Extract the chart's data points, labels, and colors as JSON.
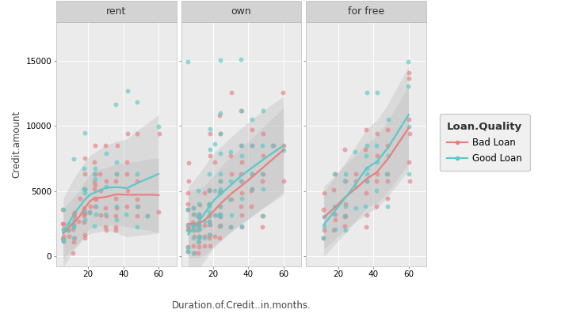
{
  "panels": [
    "rent",
    "own",
    "for free"
  ],
  "panel_keys": [
    "rent",
    "own",
    "forfree"
  ],
  "colors": {
    "bad_loan": "#E88080",
    "good_loan": "#5BC8C8",
    "band": "#BBBBBB",
    "panel_bg": "#EBEBEB",
    "panel_header_bg": "#D3D3D3",
    "grid": "#FFFFFF",
    "outer_bg": "#FFFFFF"
  },
  "ylabel": "Credit.amount",
  "xlabel": "Duration.of.Credit..in.months.",
  "legend_title": "Loan.Quality",
  "legend_labels": [
    "Bad Loan",
    "Good Loan"
  ],
  "ylim": [
    -800,
    18000
  ],
  "yticks": [
    0,
    5000,
    10000,
    15000
  ],
  "xlim": [
    2,
    70
  ],
  "xticks": [
    20,
    40,
    60
  ],
  "alpha_scatter": 0.65,
  "band_alpha": 0.35,
  "line_width": 1.6,
  "marker_size": 18,
  "rent": {
    "bad": {
      "x": [
        6,
        6,
        6,
        6,
        6,
        6,
        6,
        9,
        9,
        12,
        12,
        12,
        12,
        12,
        12,
        12,
        12,
        15,
        15,
        18,
        18,
        18,
        18,
        18,
        18,
        18,
        18,
        18,
        18,
        21,
        21,
        24,
        24,
        24,
        24,
        24,
        24,
        24,
        24,
        24,
        27,
        27,
        27,
        30,
        30,
        30,
        30,
        30,
        30,
        36,
        36,
        36,
        36,
        36,
        36,
        36,
        36,
        42,
        42,
        42,
        42,
        42,
        48,
        48,
        48,
        48,
        48,
        54,
        60,
        60
      ],
      "y": [
        1169,
        1333,
        1474,
        1961,
        2473,
        2484,
        3578,
        1474,
        1961,
        250,
        1092,
        1393,
        2028,
        2445,
        3021,
        3234,
        3345,
        2640,
        4455,
        1393,
        1597,
        2603,
        3059,
        3261,
        3261,
        3714,
        5129,
        6289,
        7511,
        3414,
        3844,
        3844,
        4394,
        4455,
        5139,
        5445,
        5711,
        6289,
        7253,
        8532,
        3148,
        5052,
        6289,
        1961,
        2241,
        3079,
        3709,
        5765,
        8532,
        1961,
        2241,
        3079,
        3709,
        4455,
        5765,
        6289,
        8532,
        3844,
        5052,
        6289,
        7253,
        9436,
        3079,
        3844,
        4394,
        5765,
        9436,
        3079,
        3414,
        9436
      ]
    },
    "good": {
      "x": [
        6,
        6,
        6,
        6,
        9,
        9,
        12,
        12,
        12,
        12,
        12,
        18,
        18,
        18,
        18,
        18,
        18,
        18,
        21,
        24,
        24,
        24,
        24,
        24,
        24,
        30,
        30,
        30,
        36,
        36,
        36,
        36,
        36,
        42,
        42,
        48,
        48,
        48,
        48,
        54,
        60
      ],
      "y": [
        1169,
        1333,
        2096,
        3578,
        1961,
        2473,
        1393,
        2260,
        2268,
        2707,
        7476,
        2769,
        3441,
        4870,
        5085,
        5129,
        6725,
        9474,
        3330,
        2302,
        3234,
        3844,
        5932,
        6289,
        6725,
        3234,
        5325,
        7897,
        2769,
        3844,
        6289,
        7253,
        11658,
        3234,
        12732,
        2241,
        3844,
        6289,
        11832,
        3079,
        9960
      ]
    }
  },
  "own": {
    "bad": {
      "x": [
        6,
        6,
        6,
        6,
        6,
        6,
        6,
        6,
        6,
        6,
        9,
        9,
        9,
        9,
        9,
        9,
        9,
        9,
        9,
        12,
        12,
        12,
        12,
        12,
        12,
        12,
        12,
        12,
        12,
        12,
        12,
        12,
        15,
        15,
        15,
        15,
        18,
        18,
        18,
        18,
        18,
        18,
        18,
        18,
        18,
        18,
        18,
        18,
        21,
        21,
        21,
        24,
        24,
        24,
        24,
        24,
        24,
        24,
        24,
        24,
        24,
        24,
        24,
        30,
        30,
        30,
        30,
        30,
        36,
        36,
        36,
        36,
        36,
        36,
        36,
        36,
        36,
        42,
        42,
        42,
        42,
        42,
        42,
        48,
        48,
        48,
        48,
        48,
        48,
        54,
        60,
        60,
        60
      ],
      "y": [
        343,
        706,
        1961,
        2096,
        2286,
        3578,
        4020,
        4870,
        5765,
        7176,
        250,
        761,
        1474,
        1961,
        2325,
        2445,
        2625,
        3234,
        3709,
        250,
        706,
        1092,
        1393,
        1474,
        1961,
        2303,
        2381,
        2625,
        3021,
        3073,
        3234,
        3909,
        761,
        1474,
        2328,
        4870,
        761,
        1393,
        1597,
        2445,
        2640,
        3059,
        3909,
        4020,
        5052,
        5096,
        7711,
        9436,
        1474,
        3148,
        7253,
        1393,
        2303,
        2381,
        3021,
        3073,
        3234,
        3844,
        4870,
        5052,
        5765,
        9436,
        10792,
        2241,
        4394,
        6289,
        7711,
        12576,
        2260,
        3148,
        3844,
        4870,
        5765,
        6289,
        7253,
        8532,
        11160,
        3844,
        5052,
        5139,
        6289,
        8532,
        9744,
        2262,
        3079,
        5765,
        6289,
        7711,
        9436,
        8532,
        5765,
        8532,
        12576
      ]
    },
    "good": {
      "x": [
        6,
        6,
        6,
        6,
        6,
        6,
        9,
        9,
        9,
        9,
        9,
        9,
        9,
        12,
        12,
        12,
        12,
        12,
        12,
        12,
        12,
        12,
        12,
        15,
        15,
        18,
        18,
        18,
        18,
        18,
        18,
        18,
        18,
        18,
        18,
        18,
        21,
        21,
        21,
        24,
        24,
        24,
        24,
        24,
        24,
        24,
        24,
        24,
        24,
        24,
        24,
        24,
        30,
        30,
        30,
        30,
        30,
        36,
        36,
        36,
        36,
        36,
        36,
        36,
        42,
        42,
        42,
        42,
        48,
        48,
        48,
        48,
        48,
        54,
        60
      ],
      "y": [
        343,
        657,
        1961,
        2445,
        3578,
        14972,
        250,
        1393,
        1961,
        2325,
        2445,
        3234,
        3709,
        1092,
        1393,
        1474,
        2028,
        2095,
        2381,
        3021,
        3234,
        4020,
        5052,
        1393,
        2640,
        1597,
        2445,
        2640,
        3059,
        3414,
        3844,
        4020,
        5052,
        6289,
        8228,
        9760,
        3148,
        5052,
        8648,
        2286,
        3078,
        3073,
        3234,
        3844,
        4870,
        5139,
        5765,
        6289,
        7897,
        9436,
        10975,
        15102,
        2241,
        3148,
        4394,
        5765,
        7997,
        2303,
        4455,
        5765,
        7711,
        8532,
        11160,
        15156,
        5139,
        6289,
        8532,
        10524,
        3079,
        5139,
        6289,
        8532,
        11160,
        8532,
        8135
      ]
    }
  },
  "forfree": {
    "bad": {
      "x": [
        12,
        12,
        12,
        12,
        18,
        18,
        18,
        18,
        18,
        24,
        24,
        24,
        24,
        24,
        24,
        30,
        30,
        36,
        36,
        36,
        36,
        36,
        36,
        42,
        42,
        42,
        42,
        42,
        48,
        48,
        48,
        48,
        48,
        60,
        60,
        60,
        60,
        60,
        60
      ],
      "y": [
        1393,
        1961,
        3578,
        4870,
        1961,
        2769,
        3234,
        5096,
        6289,
        2303,
        3021,
        3073,
        4020,
        5765,
        8228,
        5765,
        6289,
        2241,
        3148,
        4870,
        5765,
        8228,
        9744,
        3844,
        5765,
        6289,
        7711,
        9436,
        4455,
        5765,
        6289,
        8532,
        9744,
        5765,
        7253,
        9436,
        10524,
        13672,
        14088
      ]
    },
    "good": {
      "x": [
        12,
        12,
        12,
        18,
        18,
        18,
        18,
        24,
        24,
        24,
        24,
        24,
        30,
        30,
        30,
        36,
        36,
        36,
        36,
        36,
        36,
        36,
        42,
        42,
        42,
        42,
        48,
        48,
        48,
        48,
        60,
        60,
        60,
        60
      ],
      "y": [
        1393,
        2268,
        3021,
        2028,
        3261,
        3844,
        6289,
        1961,
        3073,
        3844,
        5765,
        6289,
        3709,
        5325,
        7997,
        3844,
        5765,
        6289,
        6725,
        7711,
        8532,
        12576,
        5052,
        7253,
        8532,
        12576,
        3844,
        6289,
        7711,
        10524,
        6289,
        9960,
        13048,
        14963
      ]
    }
  }
}
